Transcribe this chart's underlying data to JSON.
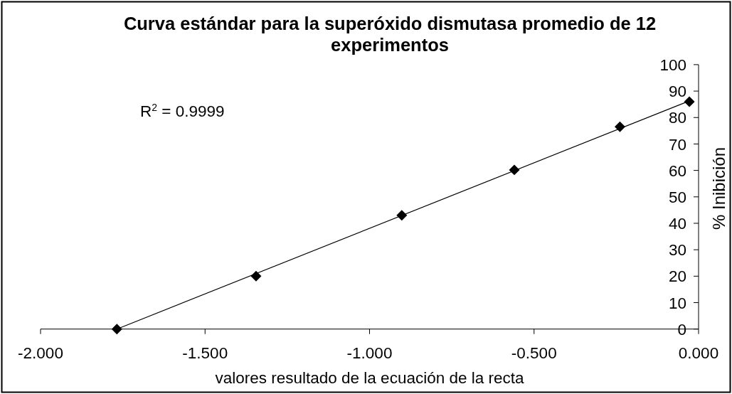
{
  "chart_data": {
    "type": "scatter",
    "title": "Curva estándar para la superóxido dismutasa promedio de 12 experimentos",
    "xlabel": "valores resultado de la ecuación de la recta",
    "ylabel": "% Inibición",
    "annotations": [
      "R$^{2}$ = 0.9999"
    ],
    "xlim": [
      -2,
      0
    ],
    "xticks": [
      {
        "value": -2,
        "label": "-2.000"
      },
      {
        "value": -1.5,
        "label": "-1.500"
      },
      {
        "value": -1,
        "label": "-1.000"
      },
      {
        "value": -0.5,
        "label": "-0.500"
      },
      {
        "value": 0,
        "label": "0.000"
      }
    ],
    "ylim": [
      0,
      100
    ],
    "yticks": [
      0,
      10,
      20,
      30,
      40,
      50,
      60,
      70,
      80,
      90,
      100
    ],
    "series": [
      {
        "type": "scatter",
        "color": "#000000",
        "marker": "diamond",
        "x": [
          -1.768,
          -1.345,
          -0.902,
          -0.56,
          -0.239,
          -0.028
        ],
        "values": [
          0,
          20,
          43,
          60.2,
          76.5,
          86
        ]
      },
      {
        "type": "line",
        "color": "#000000",
        "x": [
          -1.768,
          -0.028
        ],
        "values": [
          0,
          86.3
        ]
      }
    ]
  }
}
